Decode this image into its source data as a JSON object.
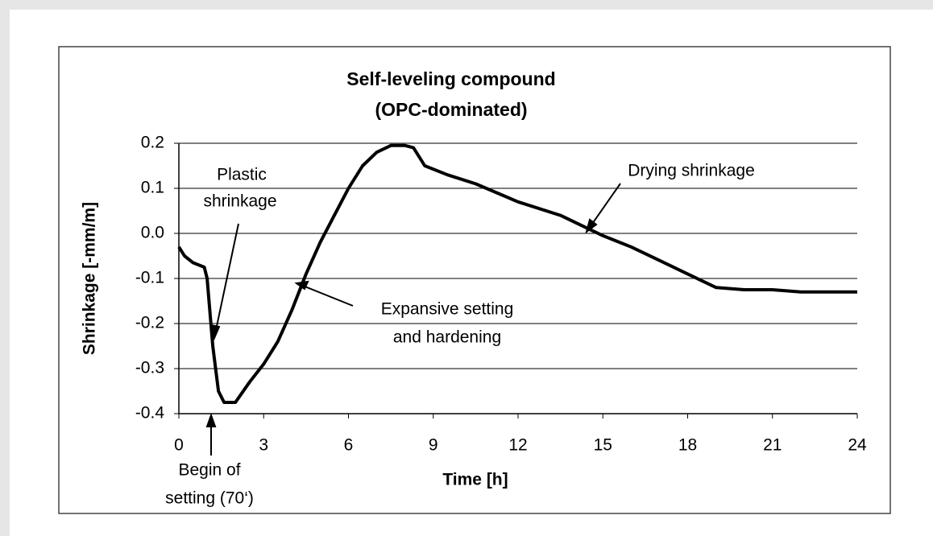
{
  "chart_data": {
    "type": "line",
    "title": "Self-leveling compound",
    "subtitle": "(OPC-dominated)",
    "xlabel": "Time [h]",
    "ylabel": "Shrinkage [-mm/m]",
    "color": "#000000",
    "x": [
      0,
      0.2,
      0.5,
      0.9,
      1.0,
      1.2,
      1.4,
      1.6,
      2.0,
      2.5,
      3.0,
      3.5,
      4.0,
      4.5,
      5.0,
      5.5,
      6.0,
      6.5,
      7.0,
      7.5,
      8.0,
      8.3,
      8.7,
      9.5,
      10.5,
      12,
      13.5,
      14.5,
      15,
      16,
      17,
      18,
      19,
      20,
      21,
      22,
      23,
      24
    ],
    "values": [
      -0.03,
      -0.05,
      -0.065,
      -0.075,
      -0.1,
      -0.25,
      -0.35,
      -0.375,
      -0.375,
      -0.33,
      -0.29,
      -0.24,
      -0.17,
      -0.09,
      -0.02,
      0.04,
      0.1,
      0.15,
      0.18,
      0.195,
      0.195,
      0.19,
      0.15,
      0.13,
      0.11,
      0.07,
      0.04,
      0.01,
      -0.005,
      -0.03,
      -0.06,
      -0.09,
      -0.12,
      -0.125,
      -0.125,
      -0.13,
      -0.13,
      -0.13
    ],
    "xlim": [
      0,
      24
    ],
    "xticks": [
      0,
      3,
      6,
      9,
      12,
      15,
      18,
      21,
      24
    ],
    "ylim": [
      -0.4,
      0.2
    ],
    "yticks": [
      -0.4,
      -0.3,
      -0.2,
      -0.1,
      {
        "value": 0,
        "label": "0.0"
      },
      0.1,
      0.2
    ],
    "grid": true,
    "annotations": [
      {
        "lines": [
          "Plastic",
          "shrinkage"
        ]
      },
      {
        "lines": [
          "Drying shrinkage"
        ]
      },
      {
        "lines": [
          "Expansive setting",
          "and hardening"
        ]
      },
      {
        "lines": [
          "Begin of",
          "setting (70‘)"
        ]
      }
    ]
  }
}
